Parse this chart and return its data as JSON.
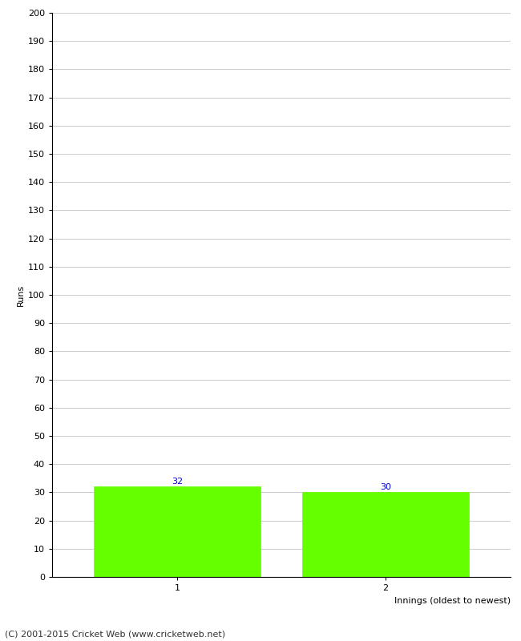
{
  "categories": [
    "1",
    "2"
  ],
  "values": [
    32,
    30
  ],
  "bar_color": "#66ff00",
  "bar_edge_color": "#66ff00",
  "xlabel": "Innings (oldest to newest)",
  "ylabel": "Runs",
  "ylim": [
    0,
    200
  ],
  "yticks": [
    0,
    10,
    20,
    30,
    40,
    50,
    60,
    70,
    80,
    90,
    100,
    110,
    120,
    130,
    140,
    150,
    160,
    170,
    180,
    190,
    200
  ],
  "label_color": "#0000cc",
  "label_fontsize": 8,
  "footer_text": "(C) 2001-2015 Cricket Web (www.cricketweb.net)",
  "background_color": "#ffffff",
  "grid_color": "#cccccc"
}
